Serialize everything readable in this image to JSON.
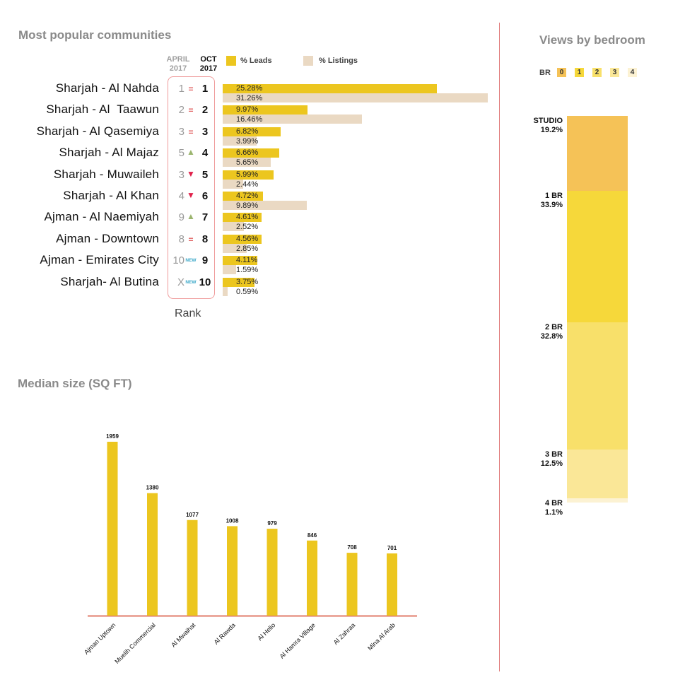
{
  "communities": {
    "title": "Most popular communities",
    "col_april": [
      "APRIL",
      "2017"
    ],
    "col_oct": [
      "OCT",
      "2017"
    ],
    "legend_leads": "% Leads",
    "legend_listings": "% Listings",
    "rank_label": "Rank",
    "colors": {
      "leads": "#ecc61f",
      "listings": "#ead9c3",
      "frame": "#ef9a9a"
    },
    "rows": [
      {
        "name": "Sharjah - Al Nahda",
        "old": "1",
        "change": "same",
        "mark": "=",
        "new": "1",
        "leads": 25.28,
        "leads_label": "25.28%",
        "listings": 31.26,
        "listings_label": "31.26%"
      },
      {
        "name": "Sharjah - Al  Taawun",
        "old": "2",
        "change": "same",
        "mark": "=",
        "new": "2",
        "leads": 9.97,
        "leads_label": "9.97%",
        "listings": 16.46,
        "listings_label": "16.46%"
      },
      {
        "name": "Sharjah - Al Qasemiya",
        "old": "3",
        "change": "same",
        "mark": "=",
        "new": "3",
        "leads": 6.82,
        "leads_label": "6.82%",
        "listings": 3.99,
        "listings_label": "3.99%"
      },
      {
        "name": "Sharjah - Al Majaz",
        "old": "5",
        "change": "up",
        "mark": "▲",
        "new": "4",
        "leads": 6.66,
        "leads_label": "6.66%",
        "listings": 5.65,
        "listings_label": "5.65%"
      },
      {
        "name": "Sharjah - Muwaileh",
        "old": "3",
        "change": "down",
        "mark": "▼",
        "new": "5",
        "leads": 5.99,
        "leads_label": "5.99%",
        "listings": 2.44,
        "listings_label": "2.44%"
      },
      {
        "name": "Sharjah - Al Khan",
        "old": "4",
        "change": "down",
        "mark": "▼",
        "new": "6",
        "leads": 4.72,
        "leads_label": "4.72%",
        "listings": 9.89,
        "listings_label": "9.89%"
      },
      {
        "name": "Ajman - Al Naemiyah",
        "old": "9",
        "change": "up",
        "mark": "▲",
        "new": "7",
        "leads": 4.61,
        "leads_label": "4.61%",
        "listings": 2.52,
        "listings_label": "2.52%"
      },
      {
        "name": "Ajman - Downtown",
        "old": "8",
        "change": "same",
        "mark": "=",
        "new": "8",
        "leads": 4.56,
        "leads_label": "4.56%",
        "listings": 2.85,
        "listings_label": "2.85%"
      },
      {
        "name": "Ajman - Emirates City",
        "old": "10",
        "change": "new",
        "mark": "NEW",
        "new": "9",
        "leads": 4.11,
        "leads_label": "4.11%",
        "listings": 1.59,
        "listings_label": "1.59%"
      },
      {
        "name": "Sharjah- Al Butina",
        "old": "X",
        "change": "new",
        "mark": "NEW",
        "new": "10",
        "leads": 3.75,
        "leads_label": "3.75%",
        "listings": 0.59,
        "listings_label": "0.59%"
      }
    ]
  },
  "bedroom": {
    "title": "Views by bedroom",
    "legend_prefix": "BR",
    "legend_items": [
      "0",
      "1",
      "2",
      "3",
      "4"
    ],
    "colors": [
      "#f5c257",
      "#f6d83a",
      "#f8e06a",
      "#fae797",
      "#fcf2d3"
    ],
    "segments": [
      {
        "label": "STUDIO",
        "value": 19.2,
        "value_label": "19.2%"
      },
      {
        "label": "1 BR",
        "value": 33.9,
        "value_label": "33.9%"
      },
      {
        "label": "2 BR",
        "value": 32.8,
        "value_label": "32.8%"
      },
      {
        "label": "3 BR",
        "value": 12.5,
        "value_label": "12.5%"
      },
      {
        "label": "4 BR",
        "value": 1.1,
        "value_label": "1.1%"
      }
    ]
  },
  "chart_data": [
    {
      "type": "bar",
      "title": "Most popular communities",
      "categories": [
        "Sharjah - Al Nahda",
        "Sharjah - Al  Taawun",
        "Sharjah - Al Qasemiya",
        "Sharjah - Al Majaz",
        "Sharjah - Muwaileh",
        "Sharjah - Al Khan",
        "Ajman - Al Naemiyah",
        "Ajman - Downtown",
        "Ajman - Emirates City",
        "Sharjah- Al Butina"
      ],
      "series": [
        {
          "name": "% Leads",
          "values": [
            25.28,
            9.97,
            6.82,
            6.66,
            5.99,
            4.72,
            4.61,
            4.56,
            4.11,
            3.75
          ]
        },
        {
          "name": "% Listings",
          "values": [
            31.26,
            16.46,
            3.99,
            5.65,
            2.44,
            9.89,
            2.52,
            2.85,
            1.59,
            0.59
          ]
        }
      ],
      "orientation": "horizontal"
    },
    {
      "type": "bar",
      "title": "Median size (SQ FT)",
      "categories": [
        "Ajman Uptown",
        "Muelih Commercial",
        "Al Mwaihat",
        "Al Rawda",
        "Al Helio",
        "Al Hamra Village",
        "Al Zahraa",
        "Mina Al Arab"
      ],
      "values": [
        1959,
        1380,
        1077,
        1008,
        979,
        846,
        708,
        701
      ],
      "ylim": [
        0,
        2000
      ],
      "color": "#ecc61f",
      "axis_color": "#e07b6a"
    },
    {
      "type": "bar",
      "title": "Views by bedroom",
      "stacked": true,
      "categories": [
        "STUDIO",
        "1 BR",
        "2 BR",
        "3 BR",
        "4 BR"
      ],
      "values": [
        19.2,
        33.9,
        32.8,
        12.5,
        1.1
      ]
    }
  ]
}
